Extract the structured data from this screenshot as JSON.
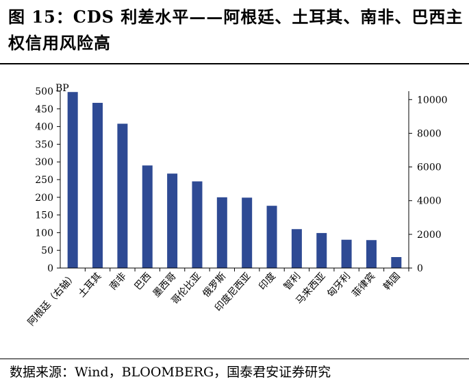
{
  "figure": {
    "title": "图 15：CDS 利差水平——阿根廷、土耳其、南非、巴西主权信用风险高",
    "source": "数据来源：Wind，BLOOMBERG，国泰君安证券研究"
  },
  "chart_data": {
    "type": "bar",
    "unit_label": "BP",
    "categories": [
      "阿根廷（右轴）",
      "土耳其",
      "南非",
      "巴西",
      "墨西哥",
      "哥伦比亚",
      "俄罗斯",
      "印度尼西亚",
      "印度",
      "智利",
      "马来西亚",
      "匈牙利",
      "菲律宾",
      "韩国"
    ],
    "values": [
      10450,
      467,
      408,
      290,
      267,
      245,
      200,
      199,
      176,
      110,
      99,
      80,
      79,
      31
    ],
    "right_axis_categories": [
      "阿根廷（右轴）"
    ],
    "left_axis": {
      "ylim": [
        0,
        500
      ],
      "ticks": [
        0,
        50,
        100,
        150,
        200,
        250,
        300,
        350,
        400,
        450,
        500
      ]
    },
    "right_axis": {
      "ylim": [
        0,
        10500
      ],
      "ticks": [
        0,
        2000,
        4000,
        6000,
        8000,
        10000
      ]
    },
    "bar_color": "#2E4A94",
    "grid": false,
    "legend": "none"
  }
}
